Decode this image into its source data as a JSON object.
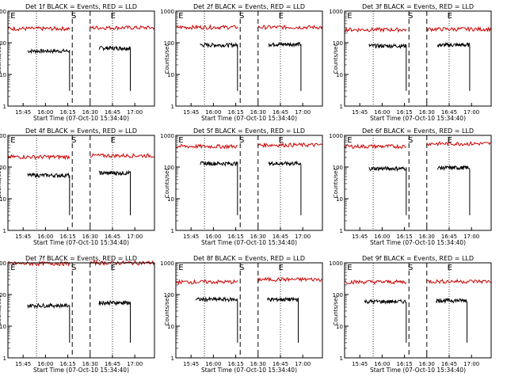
{
  "chart_data": [
    {
      "type": "line",
      "title": "Det 1f BLACK = Events, RED = LLD",
      "xlabel": "Start Time (07-Oct-10 15:34:40)",
      "ylabel": "Counts/sec",
      "yscale": "log",
      "ylim": [
        1,
        1000
      ],
      "xlim": [
        15.58,
        17.22
      ],
      "xticks": [
        "15:45",
        "16:00",
        "16:15",
        "16:30",
        "16:45",
        "17:00"
      ],
      "yticks": [
        "1",
        "10",
        "100",
        "1000"
      ],
      "markers": [
        "E",
        "S",
        "E"
      ],
      "series": [
        {
          "name": "Events",
          "color": "#000000",
          "segments": [
            [
              15.8,
              16.27,
              55
            ],
            [
              16.6,
              16.95,
              68
            ]
          ]
        },
        {
          "name": "LLD",
          "color": "#cc0000",
          "segments": [
            [
              15.58,
              16.27,
              280
            ],
            [
              16.5,
              17.22,
              300
            ]
          ]
        }
      ]
    },
    {
      "type": "line",
      "title": "Det 2f BLACK = Events, RED = LLD",
      "xlabel": "Start Time (07-Oct-10 15:34:40)",
      "ylabel": "Counts/sec",
      "yscale": "log",
      "ylim": [
        1,
        1000
      ],
      "xlim": [
        15.58,
        17.22
      ],
      "xticks": [
        "15:45",
        "16:00",
        "16:15",
        "16:30",
        "16:45",
        "17:00"
      ],
      "yticks": [
        "1",
        "10",
        "100",
        "1000"
      ],
      "markers": [
        "E",
        "S",
        "E"
      ],
      "series": [
        {
          "name": "Events",
          "color": "#000000",
          "segments": [
            [
              15.85,
              16.27,
              85
            ],
            [
              16.62,
              16.98,
              90
            ]
          ]
        },
        {
          "name": "LLD",
          "color": "#cc0000",
          "segments": [
            [
              15.58,
              16.27,
              310
            ],
            [
              16.5,
              17.22,
              310
            ]
          ]
        }
      ]
    },
    {
      "type": "line",
      "title": "Det 3f BLACK = Events, RED = LLD",
      "xlabel": "Start Time (07-Oct-10 15:34:40)",
      "ylabel": "Counts/sec",
      "yscale": "log",
      "ylim": [
        1,
        1000
      ],
      "xlim": [
        15.58,
        17.22
      ],
      "xticks": [
        "15:45",
        "16:00",
        "16:15",
        "16:30",
        "16:45",
        "17:00"
      ],
      "yticks": [
        "1",
        "10",
        "100",
        "1000"
      ],
      "markers": [
        "E",
        "S",
        "E"
      ],
      "series": [
        {
          "name": "Events",
          "color": "#000000",
          "segments": [
            [
              15.85,
              16.27,
              80
            ],
            [
              16.62,
              16.98,
              85
            ]
          ]
        },
        {
          "name": "LLD",
          "color": "#cc0000",
          "segments": [
            [
              15.58,
              16.27,
              260
            ],
            [
              16.5,
              17.22,
              270
            ]
          ]
        }
      ]
    },
    {
      "type": "line",
      "title": "Det 4f BLACK = Events, RED = LLD",
      "xlabel": "Start Time (07-Oct-10 15:34:40)",
      "ylabel": "Counts/sec",
      "yscale": "log",
      "ylim": [
        1,
        1000
      ],
      "xlim": [
        15.58,
        17.22
      ],
      "xticks": [
        "15:45",
        "16:00",
        "16:15",
        "16:30",
        "16:45",
        "17:00"
      ],
      "yticks": [
        "1",
        "10",
        "100",
        "1000"
      ],
      "markers": [
        "E",
        "S",
        "E"
      ],
      "series": [
        {
          "name": "Events",
          "color": "#000000",
          "segments": [
            [
              15.8,
              16.27,
              55
            ],
            [
              16.6,
              16.95,
              65
            ]
          ]
        },
        {
          "name": "LLD",
          "color": "#cc0000",
          "segments": [
            [
              15.58,
              16.27,
              210
            ],
            [
              16.5,
              17.22,
              230
            ]
          ]
        }
      ]
    },
    {
      "type": "line",
      "title": "Det 5f BLACK = Events, RED = LLD",
      "xlabel": "Start Time (07-Oct-10 15:34:40)",
      "ylabel": "Counts/sec",
      "yscale": "log",
      "ylim": [
        1,
        1000
      ],
      "xlim": [
        15.58,
        17.22
      ],
      "xticks": [
        "15:45",
        "16:00",
        "16:15",
        "16:30",
        "16:45",
        "17:00"
      ],
      "yticks": [
        "1",
        "10",
        "100",
        "1000"
      ],
      "markers": [
        "E",
        "S",
        "E"
      ],
      "series": [
        {
          "name": "Events",
          "color": "#000000",
          "segments": [
            [
              15.85,
              16.27,
              130
            ],
            [
              16.62,
              16.98,
              130
            ]
          ]
        },
        {
          "name": "LLD",
          "color": "#cc0000",
          "segments": [
            [
              15.58,
              16.27,
              450
            ],
            [
              16.5,
              17.22,
              500
            ]
          ]
        }
      ]
    },
    {
      "type": "line",
      "title": "Det 6f BLACK = Events, RED = LLD",
      "xlabel": "Start Time (07-Oct-10 15:34:40)",
      "ylabel": "Counts/sec",
      "yscale": "log",
      "ylim": [
        1,
        1000
      ],
      "xlim": [
        15.58,
        17.22
      ],
      "xticks": [
        "15:45",
        "16:00",
        "16:15",
        "16:30",
        "16:45",
        "17:00"
      ],
      "yticks": [
        "1",
        "10",
        "100",
        "1000"
      ],
      "markers": [
        "E",
        "S",
        "E"
      ],
      "series": [
        {
          "name": "Events",
          "color": "#000000",
          "segments": [
            [
              15.85,
              16.27,
              90
            ],
            [
              16.62,
              16.98,
              95
            ]
          ]
        },
        {
          "name": "LLD",
          "color": "#cc0000",
          "segments": [
            [
              15.58,
              16.27,
              450
            ],
            [
              16.5,
              17.22,
              550
            ]
          ]
        }
      ]
    },
    {
      "type": "line",
      "title": "Det 7f BLACK = Events, RED = LLD",
      "xlabel": "Start Time (07-Oct-10 15:34:40)",
      "ylabel": "Counts/sec",
      "yscale": "log",
      "ylim": [
        1,
        1000
      ],
      "xlim": [
        15.58,
        17.22
      ],
      "xticks": [
        "15:45",
        "16:00",
        "16:15",
        "16:30",
        "16:45",
        "17:00"
      ],
      "yticks": [
        "1",
        "10",
        "100",
        "1000"
      ],
      "markers": [
        "E",
        "S",
        "E"
      ],
      "series": [
        {
          "name": "Events",
          "color": "#000000",
          "segments": [
            [
              15.8,
              16.27,
              45
            ],
            [
              16.6,
              16.95,
              55
            ]
          ]
        },
        {
          "name": "LLD",
          "color": "#cc0000",
          "segments": [
            [
              15.58,
              16.27,
              950
            ],
            [
              16.5,
              17.22,
              1000
            ]
          ]
        }
      ]
    },
    {
      "type": "line",
      "title": "Det 8f BLACK = Events, RED = LLD",
      "xlabel": "Start Time (07-Oct-10 15:34:40)",
      "ylabel": "Counts/sec",
      "yscale": "log",
      "ylim": [
        1,
        1000
      ],
      "xlim": [
        15.58,
        17.22
      ],
      "xticks": [
        "15:45",
        "16:00",
        "16:15",
        "16:30",
        "16:45",
        "17:00"
      ],
      "yticks": [
        "1",
        "10",
        "100",
        "1000"
      ],
      "markers": [
        "E",
        "S",
        "E"
      ],
      "series": [
        {
          "name": "Events",
          "color": "#000000",
          "segments": [
            [
              15.8,
              16.27,
              70
            ],
            [
              16.6,
              16.95,
              70
            ]
          ]
        },
        {
          "name": "LLD",
          "color": "#cc0000",
          "segments": [
            [
              15.58,
              16.27,
              250
            ],
            [
              16.5,
              17.22,
              300
            ]
          ]
        }
      ]
    },
    {
      "type": "line",
      "title": "Det 9f BLACK = Events, RED = LLD",
      "xlabel": "Start Time (07-Oct-10 15:34:40)",
      "ylabel": "Counts/sec",
      "yscale": "log",
      "ylim": [
        1,
        1000
      ],
      "xlim": [
        15.58,
        17.22
      ],
      "xticks": [
        "15:45",
        "16:00",
        "16:15",
        "16:30",
        "16:45",
        "17:00"
      ],
      "yticks": [
        "1",
        "10",
        "100",
        "1000"
      ],
      "markers": [
        "E",
        "S",
        "E"
      ],
      "series": [
        {
          "name": "Events",
          "color": "#000000",
          "segments": [
            [
              15.8,
              16.27,
              60
            ],
            [
              16.6,
              16.95,
              65
            ]
          ]
        },
        {
          "name": "LLD",
          "color": "#cc0000",
          "segments": [
            [
              15.58,
              16.27,
              250
            ],
            [
              16.5,
              17.22,
              260
            ]
          ]
        }
      ]
    }
  ]
}
